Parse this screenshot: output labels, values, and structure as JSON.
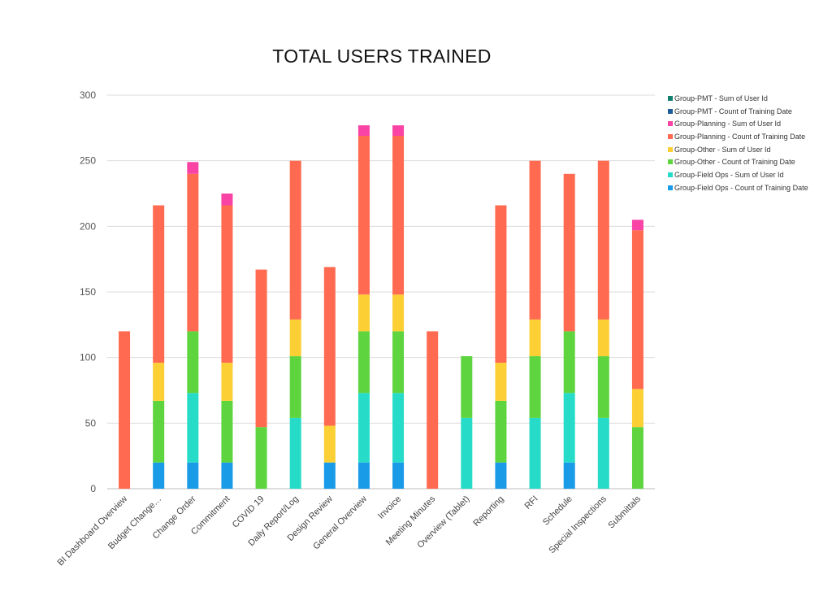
{
  "chart_data": {
    "type": "bar",
    "stacked": true,
    "title": "TOTAL USERS TRAINED",
    "xlabel": "",
    "ylabel": "",
    "ylim": [
      0,
      300
    ],
    "yticks": [
      0,
      50,
      100,
      150,
      200,
      250,
      300
    ],
    "grid": true,
    "legend_position": "right",
    "categories": [
      "BI Dashboard Overview",
      "Budget Change…",
      "Change Order",
      "Commitment",
      "COVID 19",
      "Daily Report/Log",
      "Design Review",
      "General Overview",
      "Invoice",
      "Meeting Minutes",
      "Overview (Tablet)",
      "Reporting",
      "RFI",
      "Schedule",
      "Special Inspections",
      "Submittals"
    ],
    "series": [
      {
        "name": "Group-Field Ops - Count of Training Date",
        "color": "#1a9be8",
        "values": [
          0,
          20,
          20,
          20,
          0,
          0,
          20,
          20,
          20,
          0,
          0,
          20,
          0,
          20,
          0,
          0
        ]
      },
      {
        "name": "Group-Field Ops - Sum of User Id",
        "color": "#26dcc8",
        "values": [
          0,
          0,
          53,
          0,
          0,
          54,
          0,
          53,
          53,
          0,
          54,
          0,
          54,
          53,
          54,
          0
        ]
      },
      {
        "name": "Group-Other - Count of Training Date",
        "color": "#5ed43e",
        "values": [
          0,
          47,
          47,
          47,
          47,
          47,
          0,
          47,
          47,
          0,
          47,
          47,
          47,
          47,
          47,
          47
        ]
      },
      {
        "name": "Group-Other - Sum of User Id",
        "color": "#fccf34",
        "values": [
          0,
          29,
          0,
          29,
          0,
          28,
          28,
          28,
          28,
          0,
          0,
          29,
          28,
          0,
          28,
          29
        ]
      },
      {
        "name": "Group-Planning - Count of Training Date",
        "color": "#ff6a50",
        "values": [
          120,
          120,
          120,
          120,
          120,
          121,
          121,
          121,
          121,
          120,
          0,
          120,
          121,
          120,
          121,
          121
        ]
      },
      {
        "name": "Group-Planning - Sum of User Id",
        "color": "#f944a6",
        "values": [
          0,
          0,
          9,
          9,
          0,
          0,
          0,
          8,
          8,
          0,
          0,
          0,
          0,
          0,
          0,
          8
        ]
      },
      {
        "name": "Group-PMT - Count of Training Date",
        "color": "#1f5c99",
        "values": [
          0,
          0,
          0,
          0,
          0,
          0,
          0,
          0,
          0,
          0,
          0,
          0,
          0,
          0,
          0,
          0
        ]
      },
      {
        "name": "Group-PMT - Sum of User Id",
        "color": "#12806f",
        "values": [
          0,
          0,
          0,
          0,
          0,
          0,
          0,
          0,
          0,
          0,
          0,
          0,
          0,
          0,
          0,
          0
        ]
      }
    ]
  }
}
